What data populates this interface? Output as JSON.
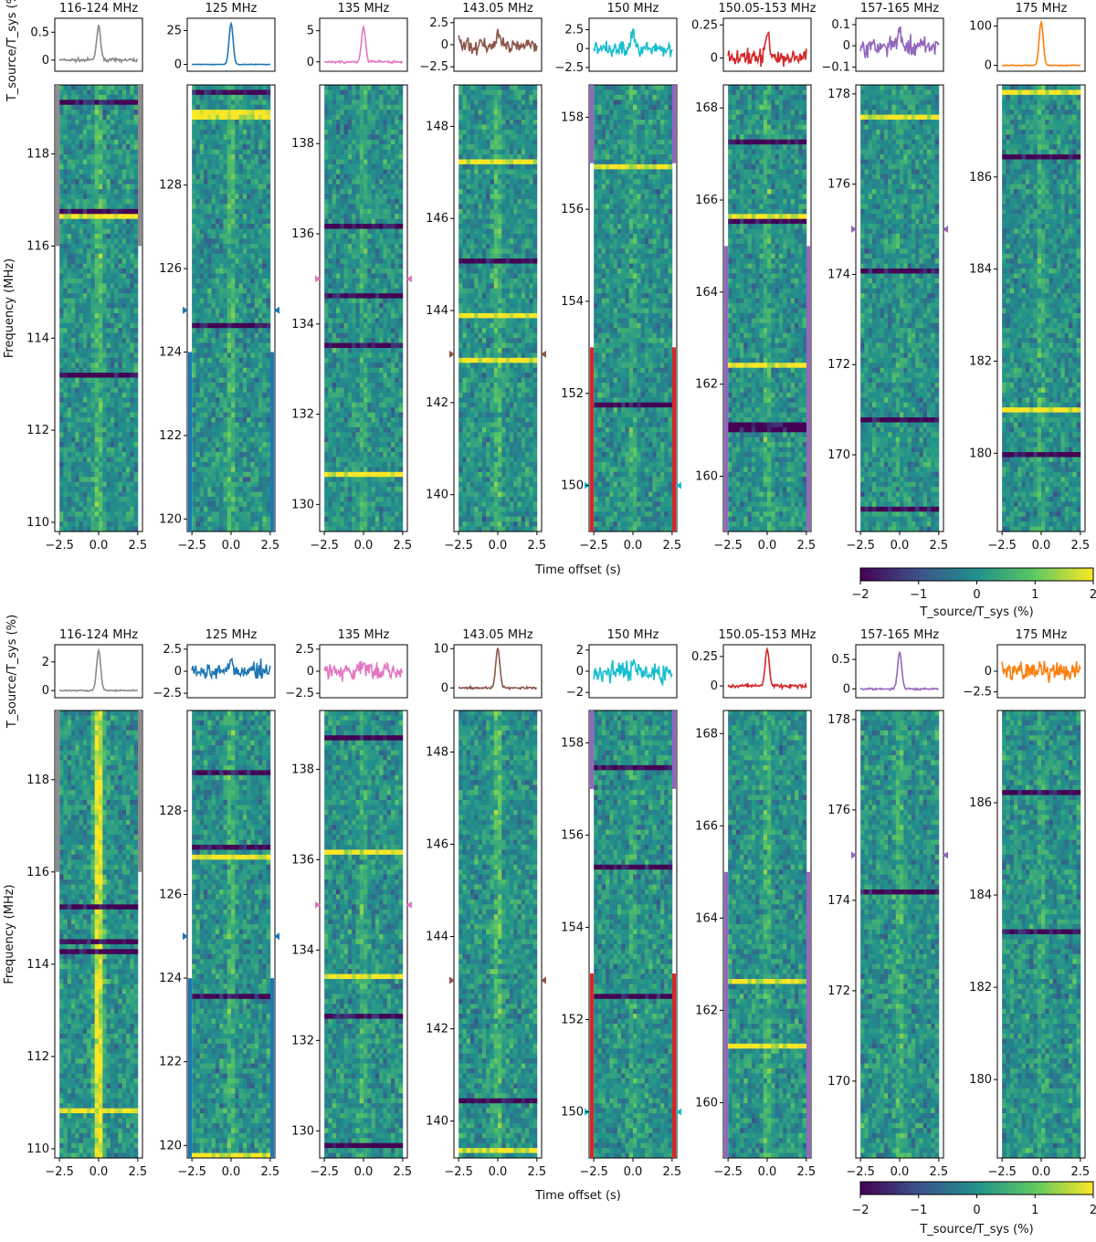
{
  "figure": {
    "time_axis_label": "Time offset (s)",
    "freq_axis_label": "Frequency (MHz)",
    "profile_axis_label": "T_source/T_sys (%)",
    "colorbar_label": "T_source/T_sys (%)",
    "colormap": [
      "#440154",
      "#3b528b",
      "#21918c",
      "#5ec962",
      "#fde725"
    ]
  },
  "chart_data": [
    {
      "type": "heatmap",
      "panel": "top",
      "colorbar": {
        "ticks": [
          "−2",
          "−1",
          "0",
          "1",
          "2"
        ],
        "vmin": -2,
        "vmax": 2
      },
      "subplots": [
        {
          "title": "116-124 MHz",
          "color": "#8c8c8c",
          "profile_ticks": [
            "0.5",
            "0"
          ],
          "profile_ylim": [
            -0.2,
            0.75
          ],
          "pulse_peak": 0.6,
          "noise": 0.08,
          "freq_ticks": [
            "110",
            "112",
            "114",
            "116",
            "118"
          ],
          "freq_range": [
            109.8,
            119.5
          ],
          "marker": null,
          "band_edges": [
            {
              "from": 116.0,
              "to": 119.5
            }
          ],
          "center_strength": 0.55
        },
        {
          "title": "125 MHz",
          "color": "#1f77b4",
          "profile_ticks": [
            "25",
            "0"
          ],
          "profile_ylim": [
            -5,
            34
          ],
          "pulse_peak": 30,
          "noise": 0.6,
          "freq_ticks": [
            "120",
            "122",
            "124",
            "126",
            "128"
          ],
          "freq_range": [
            119.7,
            130.4
          ],
          "marker": 125,
          "band_edges": [
            {
              "from": 119.7,
              "to": 124.0
            }
          ],
          "center_strength": 0.5
        },
        {
          "title": "135 MHz",
          "color": "#e377c2",
          "profile_ticks": [
            "5",
            "0"
          ],
          "profile_ylim": [
            -1.5,
            7
          ],
          "pulse_peak": 5.5,
          "noise": 0.6,
          "freq_ticks": [
            "130",
            "132",
            "134",
            "136",
            "138"
          ],
          "freq_range": [
            129.4,
            139.3
          ],
          "marker": 135,
          "band_edges": [],
          "center_strength": 0.35
        },
        {
          "title": "143.05 MHz",
          "color": "#8c564b",
          "profile_ticks": [
            "2.5",
            "0",
            "−2.5"
          ],
          "profile_ylim": [
            -3,
            3
          ],
          "pulse_peak": 1.0,
          "noise": 1.0,
          "freq_ticks": [
            "140",
            "142",
            "144",
            "146",
            "148"
          ],
          "freq_range": [
            139.2,
            148.9
          ],
          "marker": 143.05,
          "band_edges": [],
          "center_strength": 0.5
        },
        {
          "title": "150 MHz",
          "color": "#17becf",
          "profile_ticks": [
            "2.5",
            "0",
            "−2.5"
          ],
          "profile_ylim": [
            -3,
            4
          ],
          "pulse_peak": 2.5,
          "noise": 0.9,
          "freq_ticks": [
            "150",
            "152",
            "154",
            "156",
            "158"
          ],
          "freq_range": [
            149.0,
            158.7
          ],
          "marker": 150,
          "band_edges": [
            {
              "from": 149.0,
              "to": 153.0,
              "color": "#d62728"
            },
            {
              "from": 157.0,
              "to": 158.7,
              "color": "#9467bd"
            }
          ],
          "center_strength": 0.3
        },
        {
          "title": "150.05-153 MHz",
          "color": "#d62728",
          "profile_ticks": [
            "0.25",
            "0"
          ],
          "profile_ylim": [
            -0.1,
            0.3
          ],
          "pulse_peak": 0.2,
          "noise": 0.06,
          "freq_ticks": [
            "160",
            "162",
            "164",
            "166",
            "168"
          ],
          "freq_range": [
            158.8,
            168.5
          ],
          "marker": null,
          "band_edges": [
            {
              "from": 158.8,
              "to": 165.0,
              "color": "#9467bd"
            }
          ],
          "center_strength": 0.35
        },
        {
          "title": "157-165 MHz",
          "color": "#9467bd",
          "profile_ticks": [
            "0.1",
            "0",
            "−0.1"
          ],
          "profile_ylim": [
            -0.12,
            0.13
          ],
          "pulse_peak": 0.08,
          "noise": 0.05,
          "freq_ticks": [
            "170",
            "172",
            "174",
            "176",
            "178"
          ],
          "freq_range": [
            168.3,
            178.2
          ],
          "marker": 175,
          "band_edges": [],
          "center_strength": 0.2
        },
        {
          "title": "175 MHz",
          "color": "#ff7f0e",
          "profile_ticks": [
            "100",
            "0"
          ],
          "profile_ylim": [
            -15,
            120
          ],
          "pulse_peak": 110,
          "noise": 3,
          "freq_ticks": [
            "180",
            "182",
            "184",
            "186"
          ],
          "freq_range": [
            178.3,
            188.0
          ],
          "marker": null,
          "band_edges": [],
          "center_strength": 0.35
        }
      ]
    },
    {
      "type": "heatmap",
      "panel": "bottom",
      "colorbar": {
        "ticks": [
          "−2",
          "−1",
          "0",
          "1",
          "2"
        ],
        "vmin": -2,
        "vmax": 2
      },
      "subplots": [
        {
          "title": "116-124 MHz",
          "color": "#8c8c8c",
          "profile_ticks": [
            "2",
            "0"
          ],
          "profile_ylim": [
            -0.5,
            3.2
          ],
          "pulse_peak": 2.8,
          "noise": 0.15,
          "freq_ticks": [
            "110",
            "112",
            "114",
            "116",
            "118"
          ],
          "freq_range": [
            109.8,
            119.5
          ],
          "marker": null,
          "band_edges": [
            {
              "from": 116.0,
              "to": 119.5
            }
          ],
          "center_strength": 1.6
        },
        {
          "title": "125 MHz",
          "color": "#1f77b4",
          "profile_ticks": [
            "2.5",
            "0",
            "−2.5"
          ],
          "profile_ylim": [
            -3,
            3
          ],
          "pulse_peak": 0.8,
          "noise": 1.0,
          "freq_ticks": [
            "120",
            "122",
            "124",
            "126",
            "128"
          ],
          "freq_range": [
            119.7,
            130.4
          ],
          "marker": 125,
          "band_edges": [
            {
              "from": 119.7,
              "to": 124.0
            }
          ],
          "center_strength": 0.5
        },
        {
          "title": "135 MHz",
          "color": "#e377c2",
          "profile_ticks": [
            "2.5",
            "0",
            "−2.5"
          ],
          "profile_ylim": [
            -3,
            3
          ],
          "pulse_peak": 1.0,
          "noise": 1.0,
          "freq_ticks": [
            "130",
            "132",
            "134",
            "136",
            "138"
          ],
          "freq_range": [
            129.4,
            139.3
          ],
          "marker": 135,
          "band_edges": [],
          "center_strength": 0.35
        },
        {
          "title": "143.05 MHz",
          "color": "#8c564b",
          "profile_ticks": [
            "10",
            "0"
          ],
          "profile_ylim": [
            -2.5,
            11
          ],
          "pulse_peak": 10,
          "noise": 0.8,
          "freq_ticks": [
            "140",
            "142",
            "144",
            "146",
            "148"
          ],
          "freq_range": [
            139.2,
            148.9
          ],
          "marker": 143.05,
          "band_edges": [],
          "center_strength": 0.55
        },
        {
          "title": "150 MHz",
          "color": "#17becf",
          "profile_ticks": [
            "2",
            "0",
            "−2"
          ],
          "profile_ylim": [
            -2.5,
            2.5
          ],
          "pulse_peak": 0.8,
          "noise": 0.9,
          "freq_ticks": [
            "150",
            "152",
            "154",
            "156",
            "158"
          ],
          "freq_range": [
            149.0,
            158.7
          ],
          "marker": 150,
          "band_edges": [
            {
              "from": 149.0,
              "to": 153.0,
              "color": "#d62728"
            },
            {
              "from": 157.0,
              "to": 158.7,
              "color": "#9467bd"
            }
          ],
          "center_strength": 0.3
        },
        {
          "title": "150.05-153 MHz",
          "color": "#d62728",
          "profile_ticks": [
            "0.25",
            "0"
          ],
          "profile_ylim": [
            -0.1,
            0.35
          ],
          "pulse_peak": 0.3,
          "noise": 0.05,
          "freq_ticks": [
            "160",
            "162",
            "164",
            "166",
            "168"
          ],
          "freq_range": [
            158.8,
            168.5
          ],
          "marker": null,
          "band_edges": [
            {
              "from": 158.8,
              "to": 165.0,
              "color": "#9467bd"
            }
          ],
          "center_strength": 0.45
        },
        {
          "title": "157-165 MHz",
          "color": "#9467bd",
          "profile_ticks": [
            "0.5",
            "0"
          ],
          "profile_ylim": [
            -0.15,
            0.75
          ],
          "pulse_peak": 0.62,
          "noise": 0.05,
          "freq_ticks": [
            "170",
            "172",
            "174",
            "176",
            "178"
          ],
          "freq_range": [
            168.3,
            178.2
          ],
          "marker": 175,
          "band_edges": [],
          "center_strength": 0.45
        },
        {
          "title": "175 MHz",
          "color": "#ff7f0e",
          "profile_ticks": [
            "0",
            "−2.5"
          ],
          "profile_ylim": [
            -3.2,
            3.2
          ],
          "pulse_peak": 0.3,
          "noise": 1.1,
          "freq_ticks": [
            "180",
            "182",
            "184",
            "186"
          ],
          "freq_range": [
            178.3,
            188.0
          ],
          "marker": null,
          "band_edges": [],
          "center_strength": 0.3
        }
      ]
    }
  ],
  "shared": {
    "time_ticks": [
      "−2.5",
      "0.0",
      "2.5"
    ],
    "time_range": [
      -2.8,
      2.8
    ]
  }
}
